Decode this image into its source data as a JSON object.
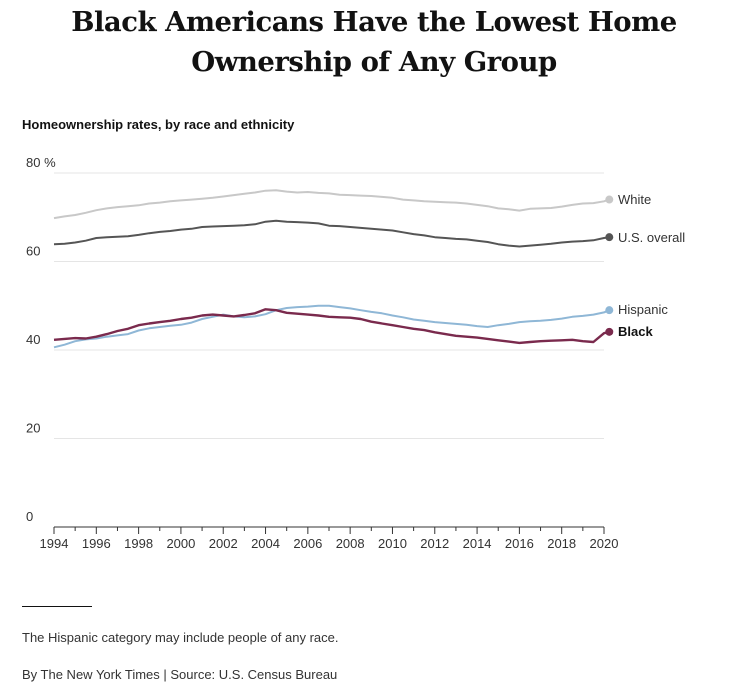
{
  "headline": "Black Americans Have the Lowest Home Ownership of Any Group",
  "subtitle": "Homeownership rates, by race and ethnicity",
  "note": "The Hispanic category may include people of any race.",
  "credit": "By The New York Times | Source: U.S. Census Bureau",
  "chart_data": {
    "type": "line",
    "title": "Black Americans Have the Lowest Home Ownership of Any Group",
    "subtitle": "Homeownership rates, by race and ethnicity",
    "xlabel": "",
    "ylabel": "",
    "xlim": [
      1994,
      2020.25
    ],
    "ylim": [
      0,
      80
    ],
    "y_ticks": [
      0,
      20,
      40,
      60,
      80
    ],
    "y_tick_labels": [
      "0",
      "20",
      "40",
      "60",
      "80 %"
    ],
    "x_ticks": [
      1994,
      1996,
      1998,
      2000,
      2002,
      2004,
      2006,
      2008,
      2010,
      2012,
      2014,
      2016,
      2018,
      2020
    ],
    "x_tick_labels": [
      "1994",
      "1996",
      "1998",
      "2000",
      "2002",
      "2004",
      "2006",
      "2008",
      "2010",
      "2012",
      "2014",
      "2016",
      "2018",
      "2020"
    ],
    "grid": true,
    "legend": "direct labels at right end of lines",
    "x": [
      1994,
      1994.5,
      1995,
      1995.5,
      1996,
      1996.5,
      1997,
      1997.5,
      1998,
      1998.5,
      1999,
      1999.5,
      2000,
      2000.5,
      2001,
      2001.5,
      2002,
      2002.5,
      2003,
      2003.5,
      2004,
      2004.5,
      2005,
      2005.5,
      2006,
      2006.5,
      2007,
      2007.5,
      2008,
      2008.5,
      2009,
      2009.5,
      2010,
      2010.5,
      2011,
      2011.5,
      2012,
      2012.5,
      2013,
      2013.5,
      2014,
      2014.5,
      2015,
      2015.5,
      2016,
      2016.5,
      2017,
      2017.5,
      2018,
      2018.5,
      2019,
      2019.5,
      2020,
      2020.25
    ],
    "series": [
      {
        "name": "White",
        "color": "#c8c8c8",
        "values": [
          69.8,
          70.2,
          70.5,
          71.0,
          71.6,
          72.0,
          72.3,
          72.5,
          72.7,
          73.1,
          73.3,
          73.6,
          73.8,
          74.0,
          74.2,
          74.4,
          74.7,
          75.0,
          75.3,
          75.6,
          76.0,
          76.1,
          75.8,
          75.6,
          75.7,
          75.5,
          75.4,
          75.1,
          75.0,
          74.9,
          74.8,
          74.6,
          74.4,
          74.0,
          73.8,
          73.6,
          73.5,
          73.4,
          73.3,
          73.1,
          72.8,
          72.5,
          72.0,
          71.8,
          71.5,
          71.9,
          72.0,
          72.1,
          72.4,
          72.8,
          73.1,
          73.2,
          73.6,
          74.0
        ]
      },
      {
        "name": "U.S. overall",
        "color": "#555555",
        "values": [
          63.9,
          64.0,
          64.3,
          64.7,
          65.3,
          65.5,
          65.6,
          65.7,
          66.0,
          66.4,
          66.7,
          66.9,
          67.2,
          67.4,
          67.8,
          67.9,
          68.0,
          68.1,
          68.2,
          68.4,
          69.0,
          69.2,
          69.0,
          68.9,
          68.8,
          68.6,
          68.1,
          68.0,
          67.8,
          67.6,
          67.4,
          67.2,
          67.0,
          66.6,
          66.2,
          65.9,
          65.5,
          65.3,
          65.1,
          65.0,
          64.7,
          64.4,
          63.9,
          63.6,
          63.4,
          63.6,
          63.8,
          64.0,
          64.3,
          64.5,
          64.6,
          64.8,
          65.3,
          65.5
        ]
      },
      {
        "name": "Hispanic",
        "color": "#8fb7d6",
        "values": [
          40.6,
          41.2,
          42.0,
          42.4,
          42.6,
          43.0,
          43.3,
          43.6,
          44.4,
          44.9,
          45.2,
          45.5,
          45.7,
          46.2,
          47.0,
          47.5,
          48.0,
          47.6,
          47.4,
          47.6,
          48.1,
          49.0,
          49.5,
          49.7,
          49.8,
          50.0,
          50.0,
          49.7,
          49.4,
          49.0,
          48.6,
          48.3,
          47.8,
          47.4,
          46.9,
          46.6,
          46.3,
          46.1,
          45.9,
          45.7,
          45.4,
          45.2,
          45.6,
          45.9,
          46.3,
          46.5,
          46.6,
          46.8,
          47.1,
          47.5,
          47.7,
          48.0,
          48.5,
          49.0
        ]
      },
      {
        "name": "Black",
        "color": "#7a2a4d",
        "values": [
          42.3,
          42.5,
          42.7,
          42.6,
          43.0,
          43.6,
          44.3,
          44.8,
          45.6,
          46.0,
          46.3,
          46.6,
          47.0,
          47.3,
          47.8,
          48.0,
          47.8,
          47.6,
          47.9,
          48.3,
          49.2,
          49.0,
          48.4,
          48.2,
          48.0,
          47.8,
          47.5,
          47.4,
          47.3,
          47.0,
          46.4,
          46.0,
          45.6,
          45.2,
          44.8,
          44.5,
          44.0,
          43.6,
          43.2,
          43.0,
          42.8,
          42.5,
          42.2,
          41.9,
          41.6,
          41.8,
          42.0,
          42.1,
          42.2,
          42.3,
          42.0,
          41.8,
          43.8,
          44.1
        ]
      }
    ]
  }
}
